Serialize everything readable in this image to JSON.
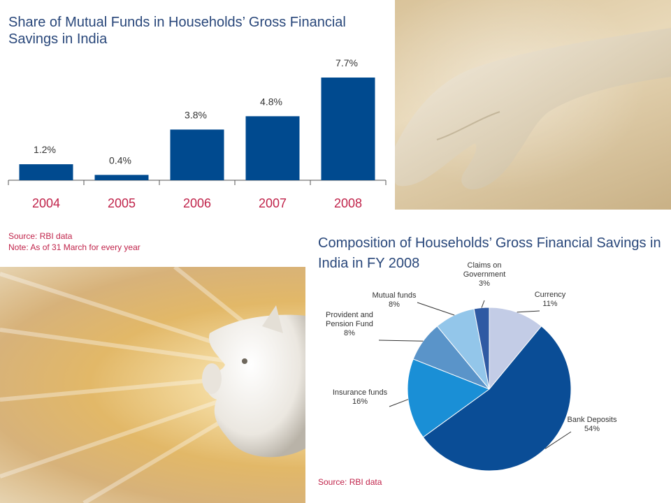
{
  "bar_chart": {
    "title_line1": "Share of Mutual Funds in Households’ Gross Financial",
    "title_line2": "Savings in India",
    "source": "Source: RBI data",
    "note": "Note: As of 31 March for every year"
  },
  "pie_chart": {
    "title_line1": "Composition of Households’ Gross Financial Savings in",
    "title_line2": "India in FY 2008",
    "source": "Source: RBI data"
  },
  "colors": {
    "bar": "#004a8f",
    "title": "#29477a",
    "year_label": "#c0234a",
    "source": "#c0234a"
  },
  "chart_data": [
    {
      "type": "bar",
      "title": "Share of Mutual Funds in Households’ Gross Financial Savings in India",
      "categories": [
        "2004",
        "2005",
        "2006",
        "2007",
        "2008"
      ],
      "values": [
        1.2,
        0.4,
        3.8,
        4.8,
        7.7
      ],
      "value_labels": [
        "1.2%",
        "0.4%",
        "3.8%",
        "4.8%",
        "7.7%"
      ],
      "ylim": [
        0,
        7.7
      ],
      "grid": false,
      "xlabel": "",
      "ylabel": ""
    },
    {
      "type": "pie",
      "title": "Composition of Households’ Gross Financial Savings in India in FY 2008",
      "slices": [
        {
          "label_lines": [
            "Currency"
          ],
          "value": 11,
          "value_label": "11%",
          "color": "#c3cce6"
        },
        {
          "label_lines": [
            "Bank Deposits"
          ],
          "value": 54,
          "value_label": "54%",
          "color": "#0a4d96"
        },
        {
          "label_lines": [
            "Insurance funds"
          ],
          "value": 16,
          "value_label": "16%",
          "color": "#1a8fd6"
        },
        {
          "label_lines": [
            "Provident and",
            "Pension Fund"
          ],
          "value": 8,
          "value_label": "8%",
          "color": "#5a94c9"
        },
        {
          "label_lines": [
            "Mutual funds"
          ],
          "value": 8,
          "value_label": "8%",
          "color": "#93c6ea"
        },
        {
          "label_lines": [
            "Claims on",
            "Government"
          ],
          "value": 3,
          "value_label": "3%",
          "color": "#2f5aa3"
        }
      ]
    }
  ]
}
